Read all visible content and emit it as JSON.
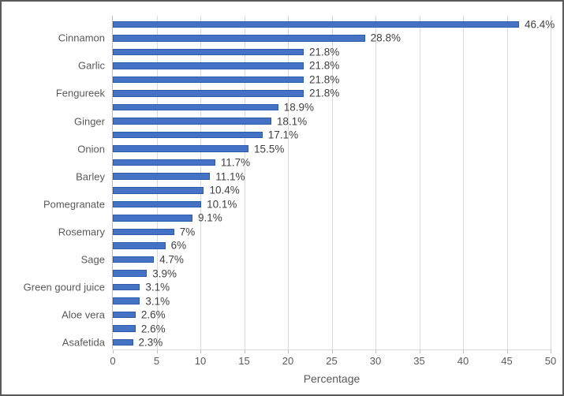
{
  "figure": {
    "background_color": "#ffffff",
    "border_color": "#5a5a5b"
  },
  "chart_data": {
    "type": "bar",
    "orientation": "horizontal",
    "title": "",
    "xlabel": "Percentage",
    "ylabel": "",
    "xlim": [
      0,
      50
    ],
    "xticks": [
      0,
      5,
      10,
      15,
      20,
      25,
      30,
      35,
      40,
      45,
      50
    ],
    "grid": true,
    "legend": false,
    "bar_color": "#4472c4",
    "bar_border_color": "#2e5aa8",
    "gridline_color": "#d9d9d9",
    "axis_color": "#bfbfbf",
    "tick_text_color": "#595959",
    "value_label_color": "#404040",
    "bars": [
      {
        "label": "",
        "value": 46.4,
        "text": "46.4%"
      },
      {
        "label": "Cinnamon",
        "value": 28.8,
        "text": "28.8%"
      },
      {
        "label": "",
        "value": 21.8,
        "text": "21.8%"
      },
      {
        "label": "Garlic",
        "value": 21.8,
        "text": "21.8%"
      },
      {
        "label": "",
        "value": 21.8,
        "text": "21.8%"
      },
      {
        "label": "Fengureek",
        "value": 21.8,
        "text": "21.8%"
      },
      {
        "label": "",
        "value": 18.9,
        "text": "18.9%"
      },
      {
        "label": "Ginger",
        "value": 18.1,
        "text": "18.1%"
      },
      {
        "label": "",
        "value": 17.1,
        "text": "17.1%"
      },
      {
        "label": "Onion",
        "value": 15.5,
        "text": "15.5%"
      },
      {
        "label": "",
        "value": 11.7,
        "text": "11.7%"
      },
      {
        "label": "Barley",
        "value": 11.1,
        "text": "11.1%"
      },
      {
        "label": "",
        "value": 10.4,
        "text": "10.4%"
      },
      {
        "label": "Pomegranate",
        "value": 10.1,
        "text": "10.1%"
      },
      {
        "label": "",
        "value": 9.1,
        "text": "9.1%"
      },
      {
        "label": "Rosemary",
        "value": 7,
        "text": "7%"
      },
      {
        "label": "",
        "value": 6,
        "text": "6%"
      },
      {
        "label": "Sage",
        "value": 4.7,
        "text": "4.7%"
      },
      {
        "label": "",
        "value": 3.9,
        "text": "3.9%"
      },
      {
        "label": "Green gourd juice",
        "value": 3.1,
        "text": "3.1%"
      },
      {
        "label": "",
        "value": 3.1,
        "text": "3.1%"
      },
      {
        "label": "Aloe vera",
        "value": 2.6,
        "text": "2.6%"
      },
      {
        "label": "",
        "value": 2.6,
        "text": "2.6%"
      },
      {
        "label": "Asafetida",
        "value": 2.3,
        "text": "2.3%"
      }
    ]
  }
}
